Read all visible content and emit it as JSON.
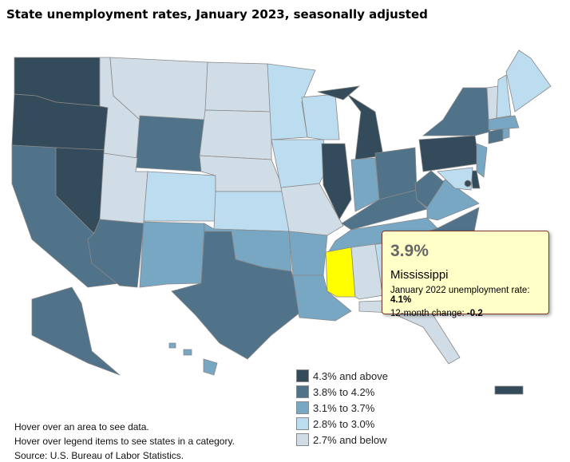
{
  "title": "State unemployment rates, January 2023, seasonally adjusted",
  "legend": [
    {
      "label": "4.3% and above",
      "color": "#344b5b"
    },
    {
      "label": "3.8% to 4.2%",
      "color": "#50738a"
    },
    {
      "label": "3.1% to 3.7%",
      "color": "#78a7c4"
    },
    {
      "label": "2.8% to 3.0%",
      "color": "#bcdcf0"
    },
    {
      "label": "2.7% and below",
      "color": "#d1dde6"
    }
  ],
  "highlight_color": "#ffff00",
  "tooltip": {
    "rate": "3.9%",
    "state": "Mississippi",
    "prev_label": "January 2022 unemployment rate: ",
    "prev_value": "4.1%",
    "change_label": "12-month change: ",
    "change_value": "-0.2"
  },
  "states": {
    "WA": 0,
    "OR": 0,
    "NV": 0,
    "IL": 0,
    "MI": 0,
    "PA": 0,
    "DE": 0,
    "DC": 0,
    "PR": 0,
    "CA": 1,
    "AZ": 1,
    "TX": 1,
    "WY": 1,
    "OH": 1,
    "KY": 1,
    "WV": 1,
    "NY": 1,
    "NC": 1,
    "CT": 1,
    "AK": 1,
    "MS": 1,
    "NM": 2,
    "OK": 2,
    "AR": 2,
    "LA": 2,
    "IN": 2,
    "TN": 2,
    "VA": 2,
    "NJ": 2,
    "MA": 2,
    "RI": 2,
    "HI": 2,
    "CO": 3,
    "KS": 3,
    "MN": 3,
    "WI": 3,
    "IA": 3,
    "ME": 3,
    "NH": 3,
    "MD": 3,
    "GA": 3,
    "MT": 4,
    "ID": 4,
    "ND": 4,
    "SD": 4,
    "NE": 4,
    "UT": 4,
    "MO": 4,
    "FL": 4,
    "AL": 4,
    "VT": 4,
    "SC": 4
  },
  "selected_state": "MS",
  "notes": [
    "Hover over an area to see data.",
    "Hover over legend items to see states in a category.",
    "Source: U.S. Bureau of Labor Statistics."
  ]
}
